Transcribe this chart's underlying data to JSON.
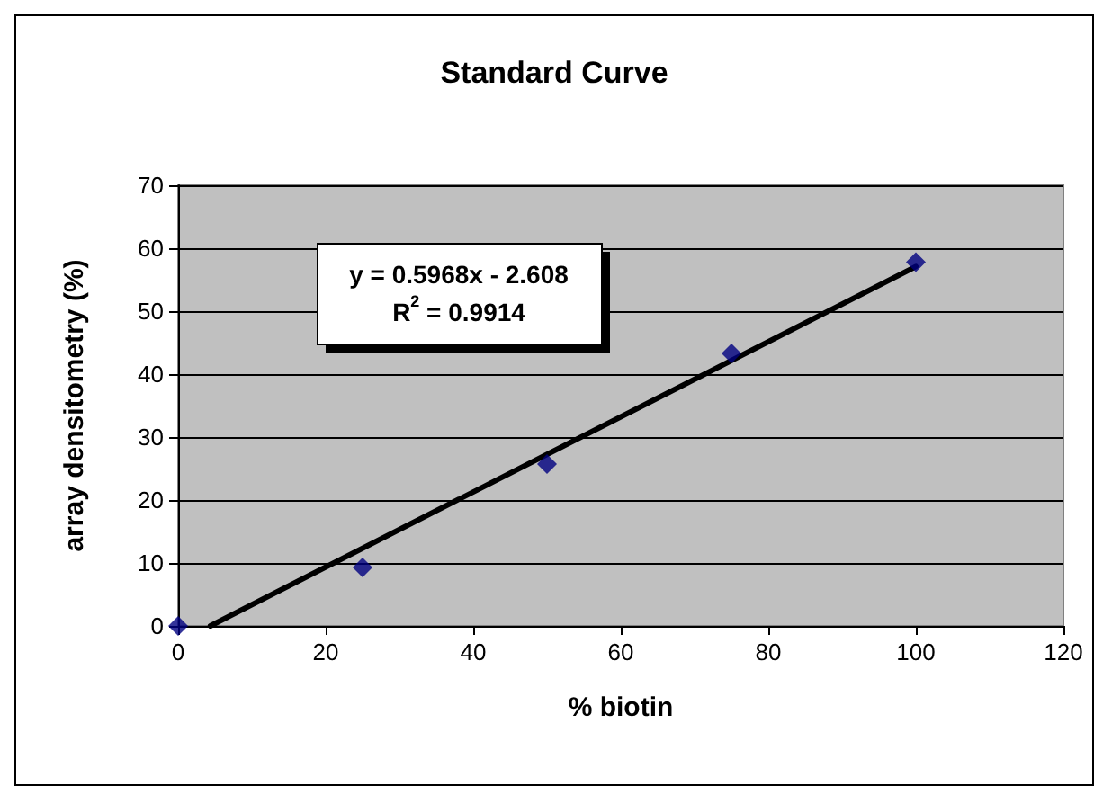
{
  "chart_data": {
    "type": "scatter",
    "title": "Standard Curve",
    "xlabel": "% biotin",
    "ylabel": "array densitometry (%)",
    "x": [
      0,
      25,
      50,
      75,
      100
    ],
    "series": [
      {
        "color": "#000080",
        "marker": "diamond",
        "values": [
          0,
          9.3,
          25.7,
          43.3,
          57.8
        ]
      },
      {
        "type": "line",
        "color": "#000000",
        "marker": "none",
        "line_style": "solid",
        "x": [
          4.37,
          100
        ],
        "values": [
          0,
          57.1
        ]
      }
    ],
    "annotations": [
      "y = 0.5968x - 2.608",
      "R$^{2}$ = 0.9914"
    ],
    "xlim": [
      0,
      120
    ],
    "xticks": [
      0,
      20,
      40,
      60,
      80,
      100,
      120
    ],
    "ylim": [
      0,
      70
    ],
    "yticks": [
      0,
      10,
      20,
      30,
      40,
      50,
      60,
      70
    ],
    "grid": "y"
  }
}
